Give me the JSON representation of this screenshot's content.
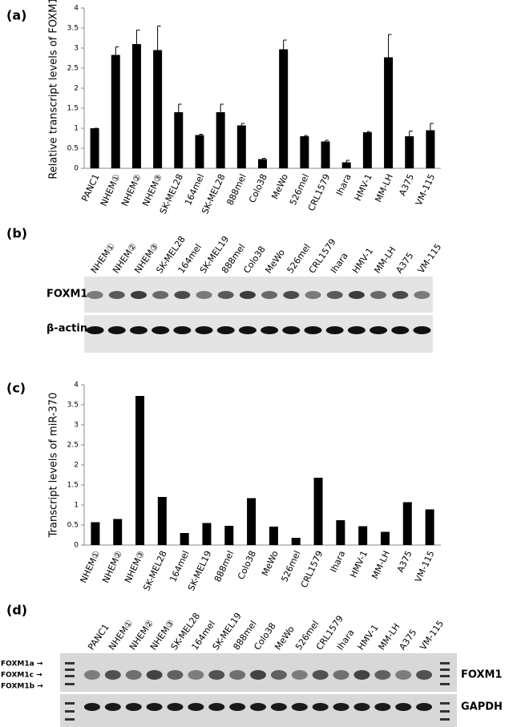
{
  "chart_data": [
    {
      "type": "bar",
      "label": "(a)",
      "ylabel": "Relative transcript levels of FOXM1",
      "categories": [
        "PANC1",
        "NHEM①",
        "NHEM②",
        "NHEM③",
        "SK-MEL28",
        "164mel",
        "SK-MEL28",
        "888mel",
        "Colo38",
        "MeWo",
        "526mel",
        "CRL1579",
        "Ihara",
        "HMV-1",
        "MM-LH",
        "A375",
        "VM-115"
      ],
      "values": [
        1,
        2.83,
        3.1,
        2.95,
        1.4,
        0.83,
        1.4,
        1.07,
        0.23,
        2.97,
        0.8,
        0.67,
        0.15,
        0.9,
        2.77,
        0.8,
        0.95
      ],
      "errors": [
        0,
        0.2,
        0.35,
        0.6,
        0.2,
        0.02,
        0.2,
        0.05,
        0.02,
        0.23,
        0.02,
        0.03,
        0.05,
        0.02,
        0.57,
        0.13,
        0.17
      ],
      "color": "#000000",
      "ylim": [
        0,
        4
      ],
      "yticks": [
        0,
        0.5,
        1,
        1.5,
        2,
        2.5,
        3,
        3.5,
        4
      ]
    },
    {
      "type": "bar",
      "label": "(c)",
      "ylabel": "Transcript levels of miR-370",
      "categories": [
        "NHEM①",
        "NHEM②",
        "NHEM③",
        "SK-MEL28",
        "164mel",
        "SK-MEL19",
        "888mel",
        "Colo38",
        "MeWo",
        "526mel",
        "CRL1579",
        "Ihara",
        "HMV-1",
        "MM-LH",
        "A375",
        "VM-115"
      ],
      "values": [
        0.57,
        0.65,
        3.72,
        1.2,
        0.3,
        0.55,
        0.48,
        1.17,
        0.46,
        0.18,
        1.68,
        0.62,
        0.47,
        0.33,
        1.07,
        0.89
      ],
      "color": "#000000",
      "ylim": [
        0,
        4
      ],
      "yticks": [
        0,
        0.5,
        1,
        1.5,
        2,
        2.5,
        3,
        3.5,
        4
      ]
    }
  ],
  "blots": [
    {
      "label": "(b)",
      "lanes": [
        "NHEM①",
        "NHEM②",
        "NHEM③",
        "SK-MEL28",
        "164mel",
        "SK-MEL19",
        "888mel",
        "Colo38",
        "MeWo",
        "526mel",
        "CRL1579",
        "Ihara",
        "HMV-1",
        "MM-LH",
        "A375",
        "VM-115"
      ],
      "rows": [
        "FOXM1",
        "β-actin"
      ]
    },
    {
      "label": "(d)",
      "lanes": [
        "PANC1",
        "NHEM①",
        "NHEM②",
        "NHEM③",
        "SK-MEL28",
        "164mel",
        "SK-MEL19",
        "888mel",
        "Colo38",
        "MeWo",
        "526mel",
        "CRL1579",
        "Ihara",
        "HMV-1",
        "MM-LH",
        "A375",
        "VM-115"
      ],
      "left_labels": [
        "FOXM1a →",
        "FOXM1c →",
        "FOXM1b →"
      ],
      "rows": [
        "FOXM1",
        "GAPDH"
      ]
    }
  ]
}
